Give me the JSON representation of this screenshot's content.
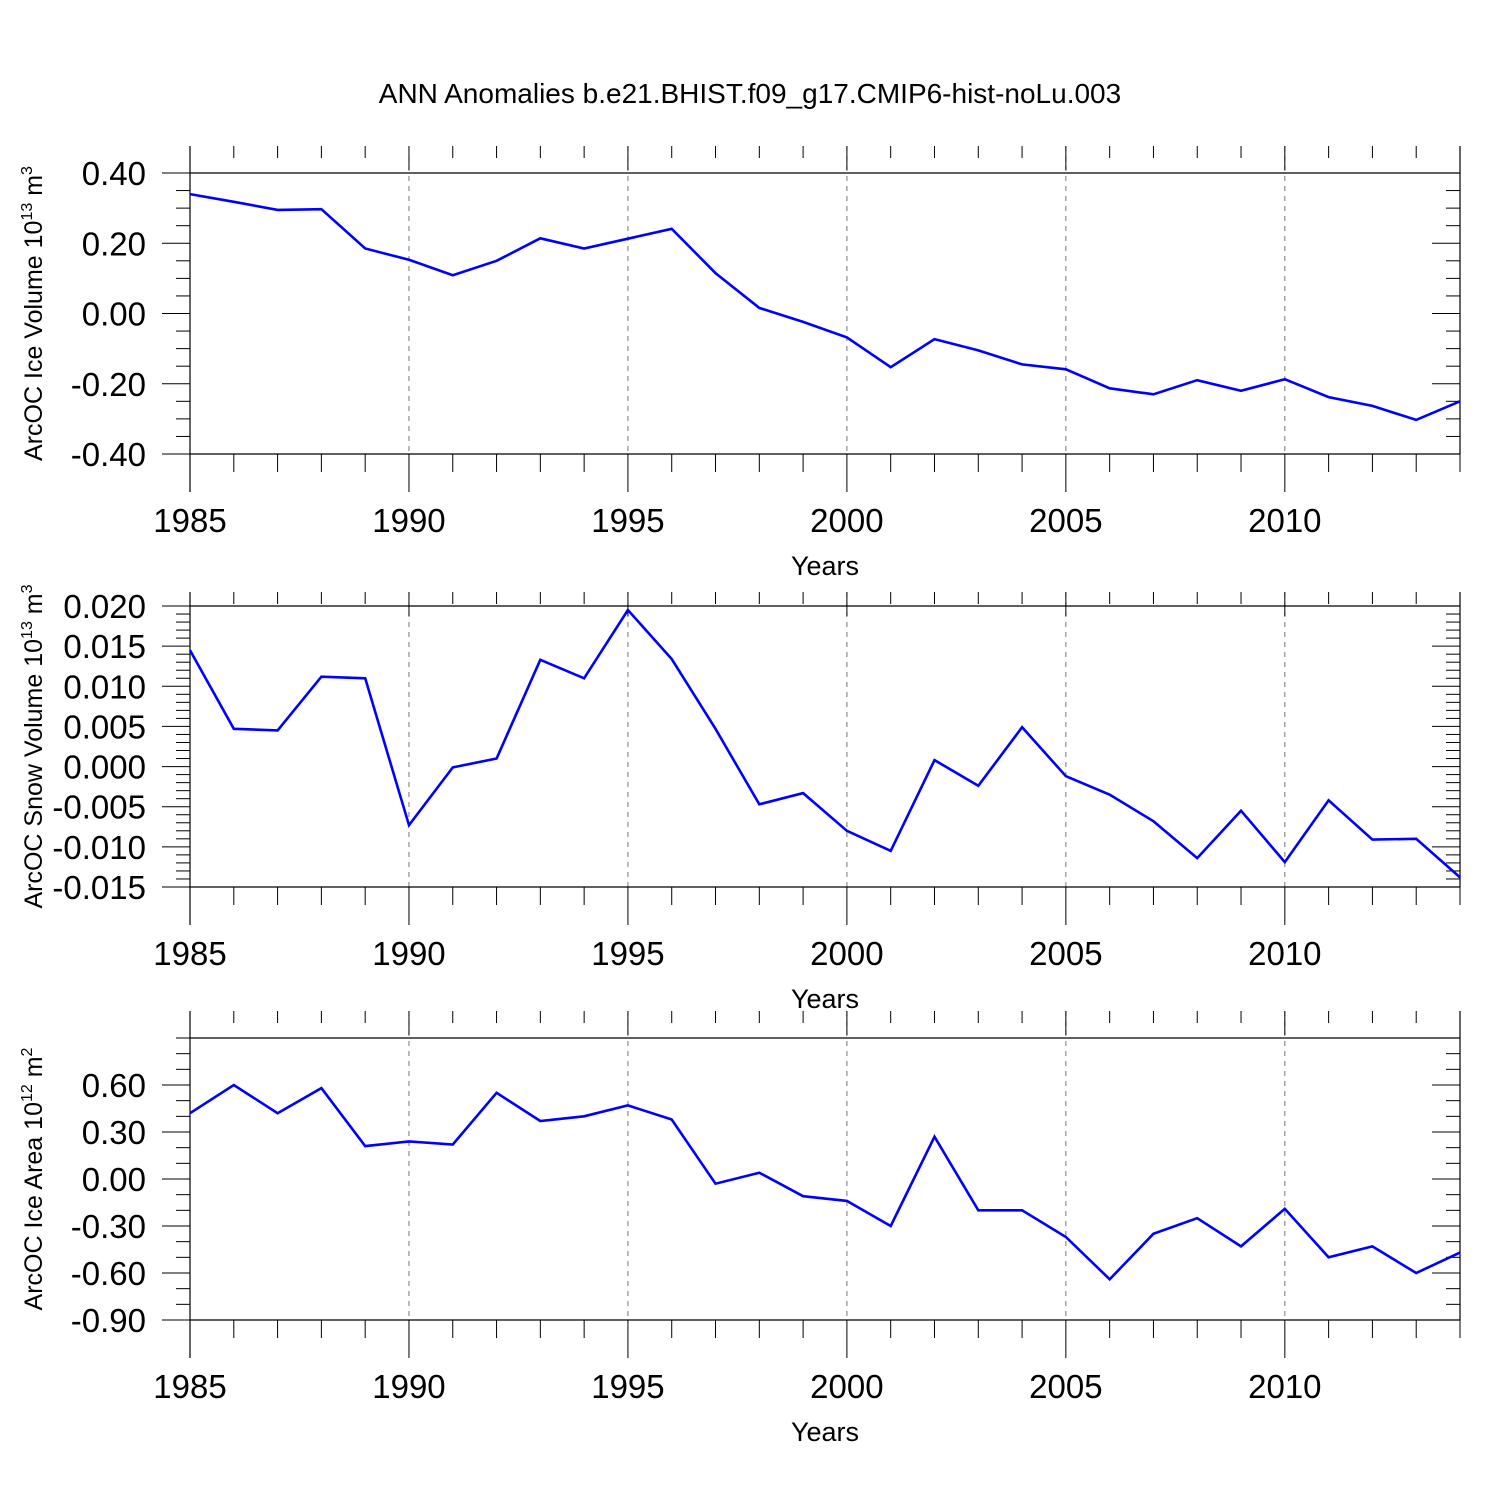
{
  "title": "ANN Anomalies b.e21.BHIST.f09_g17.CMIP6-hist-noLu.003",
  "line_color": "#0000ff",
  "chart_data": [
    {
      "type": "line",
      "ylabel": "ArcOC Ice Volume 10",
      "ylabel_exp": "13",
      "ylabel_unit": " m",
      "ylabel_unit_exp": "3",
      "xlabel": "Years",
      "xlim": [
        1985,
        2014
      ],
      "ylim": [
        -0.4,
        0.4
      ],
      "yticks": [
        -0.4,
        -0.2,
        0.0,
        0.2,
        0.4
      ],
      "ytick_labels": [
        "-0.40",
        "-0.20",
        "0.00",
        "0.20",
        "0.40"
      ],
      "yminor_step": 0.05,
      "xticks": [
        1985,
        1990,
        1995,
        2000,
        2005,
        2010
      ],
      "xtick_labels": [
        "1985",
        "1990",
        "1995",
        "2000",
        "2005",
        "2010"
      ],
      "x": [
        1985,
        1986,
        1987,
        1988,
        1989,
        1990,
        1991,
        1992,
        1993,
        1994,
        1995,
        1996,
        1997,
        1998,
        1999,
        2000,
        2001,
        2002,
        2003,
        2004,
        2005,
        2006,
        2007,
        2008,
        2009,
        2010,
        2011,
        2012,
        2013,
        2014
      ],
      "series": [
        {
          "values": [
            0.34,
            0.318,
            0.295,
            0.297,
            0.185,
            0.153,
            0.109,
            0.15,
            0.214,
            0.185,
            0.213,
            0.241,
            0.115,
            0.016,
            -0.024,
            -0.068,
            -0.153,
            -0.073,
            -0.105,
            -0.145,
            -0.159,
            -0.213,
            -0.23,
            -0.19,
            -0.22,
            -0.187,
            -0.238,
            -0.263,
            -0.303,
            -0.25
          ]
        }
      ]
    },
    {
      "type": "line",
      "ylabel": "ArcOC Snow Volume 10",
      "ylabel_exp": "13",
      "ylabel_unit": " m",
      "ylabel_unit_exp": "3",
      "xlabel": "Years",
      "xlim": [
        1985,
        2014
      ],
      "ylim": [
        -0.015,
        0.02
      ],
      "yticks": [
        -0.015,
        -0.01,
        -0.005,
        0.0,
        0.005,
        0.01,
        0.015,
        0.02
      ],
      "ytick_labels": [
        "-0.015",
        "-0.010",
        "-0.005",
        "0.000",
        "0.005",
        "0.010",
        "0.015",
        "0.020"
      ],
      "yminor_step": 0.001,
      "xticks": [
        1985,
        1990,
        1995,
        2000,
        2005,
        2010
      ],
      "xtick_labels": [
        "1985",
        "1990",
        "1995",
        "2000",
        "2005",
        "2010"
      ],
      "x": [
        1985,
        1986,
        1987,
        1988,
        1989,
        1990,
        1991,
        1992,
        1993,
        1994,
        1995,
        1996,
        1997,
        1998,
        1999,
        2000,
        2001,
        2002,
        2003,
        2004,
        2005,
        2006,
        2007,
        2008,
        2009,
        2010,
        2011,
        2012,
        2013,
        2014
      ],
      "series": [
        {
          "values": [
            0.0145,
            0.0047,
            0.0045,
            0.0112,
            0.011,
            -0.0073,
            -0.0001,
            0.001,
            0.0133,
            0.011,
            0.0195,
            0.0134,
            0.0047,
            -0.0047,
            -0.0033,
            -0.008,
            -0.0105,
            0.0008,
            -0.0024,
            0.0049,
            -0.0012,
            -0.0035,
            -0.0068,
            -0.0114,
            -0.0055,
            -0.0119,
            -0.0042,
            -0.0091,
            -0.009,
            -0.0138
          ]
        }
      ]
    },
    {
      "type": "line",
      "ylabel": "ArcOC Ice Area 10",
      "ylabel_exp": "12",
      "ylabel_unit": " m",
      "ylabel_unit_exp": "2",
      "xlabel": "Years",
      "xlim": [
        1985,
        2014
      ],
      "ylim": [
        -0.9,
        0.9
      ],
      "yticks": [
        -0.9,
        -0.6,
        -0.3,
        0.0,
        0.3,
        0.6
      ],
      "ytick_labels": [
        "-0.90",
        "-0.60",
        "-0.30",
        "0.00",
        "0.30",
        "0.60"
      ],
      "yminor_step": 0.1,
      "xticks": [
        1985,
        1990,
        1995,
        2000,
        2005,
        2010
      ],
      "xtick_labels": [
        "1985",
        "1990",
        "1995",
        "2000",
        "2005",
        "2010"
      ],
      "x": [
        1985,
        1986,
        1987,
        1988,
        1989,
        1990,
        1991,
        1992,
        1993,
        1994,
        1995,
        1996,
        1997,
        1998,
        1999,
        2000,
        2001,
        2002,
        2003,
        2004,
        2005,
        2006,
        2007,
        2008,
        2009,
        2010,
        2011,
        2012,
        2013,
        2014
      ],
      "series": [
        {
          "values": [
            0.42,
            0.6,
            0.42,
            0.58,
            0.21,
            0.24,
            0.22,
            0.55,
            0.37,
            0.4,
            0.47,
            0.38,
            -0.03,
            0.04,
            -0.11,
            -0.14,
            -0.3,
            0.27,
            -0.2,
            -0.2,
            -0.37,
            -0.64,
            -0.35,
            -0.25,
            -0.43,
            -0.19,
            -0.5,
            -0.43,
            -0.6,
            -0.47
          ]
        }
      ]
    }
  ]
}
